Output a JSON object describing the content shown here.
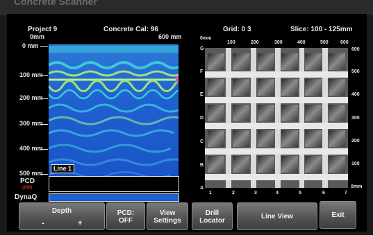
{
  "header": {
    "project": "Project 9",
    "calibration": "Concrete Cal: 96",
    "grid": "Grid: 0 3",
    "slice": "Slice: 100 - 125mm"
  },
  "scan_view": {
    "x_start": "0mm",
    "x_end": "600 mm",
    "depth_labels": [
      "0 mm",
      "100 mm",
      "200 mm",
      "300 mm",
      "400 mm",
      "500 mm"
    ],
    "line_badge": "Line 1",
    "pcd_label": "PCD",
    "pcd_value": "(100)",
    "dynaq_label": "DynaQ",
    "colors": {
      "background": "#1f5fd0",
      "band_light": "#9be27a",
      "band_cyan": "#3fc8d8"
    }
  },
  "grid_view": {
    "top_labels": [
      "0mm",
      "100",
      "200",
      "300",
      "400",
      "500",
      "600"
    ],
    "right_labels": [
      "600",
      "500",
      "400",
      "300",
      "200",
      "100",
      "0mm"
    ],
    "row_letters": [
      "G",
      "F",
      "E",
      "D",
      "C",
      "B",
      "A"
    ],
    "bottom_numbers": [
      "1",
      "2",
      "3",
      "4",
      "5",
      "6",
      "7"
    ]
  },
  "buttons": {
    "depth": {
      "label": "Depth",
      "minus": "-",
      "plus": "+"
    },
    "pcd": {
      "line1": "PCD:",
      "line2": "OFF"
    },
    "view": {
      "line1": "View",
      "line2": "Settings"
    },
    "drill": {
      "line1": "Drill",
      "line2": "Locator"
    },
    "line_view": {
      "label": "Line View"
    },
    "exit": {
      "label": "Exit"
    }
  },
  "device_brand": "Concrete Scanner"
}
